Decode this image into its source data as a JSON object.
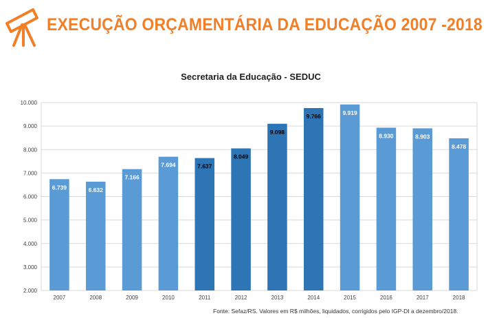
{
  "header": {
    "title": "EXECUÇÃO ORÇAMENTÁRIA DA EDUCAÇÃO 2007 -2018",
    "icon": "telescope-icon",
    "accent_color": "#f07f28"
  },
  "chart_data": {
    "type": "bar",
    "title": "Secretaria da Educação - SEDUC",
    "categories": [
      "2007",
      "2008",
      "2009",
      "2010",
      "2011",
      "2012",
      "2013",
      "2014",
      "2015",
      "2016",
      "2017",
      "2018"
    ],
    "values": [
      6739,
      6632,
      7166,
      7694,
      7637,
      8049,
      9098,
      9766,
      9919,
      8930,
      8903,
      8478
    ],
    "value_labels": [
      "6.739",
      "6.632",
      "7.166",
      "7.694",
      "7.637",
      "8.049",
      "9.098",
      "9.766",
      "9.919",
      "8.930",
      "8.903",
      "8.478"
    ],
    "highlighted": [
      false,
      false,
      false,
      false,
      true,
      true,
      true,
      true,
      false,
      false,
      false,
      false
    ],
    "ylim": [
      2000,
      10000
    ],
    "yticks": [
      2000,
      3000,
      4000,
      5000,
      6000,
      7000,
      8000,
      9000,
      10000
    ],
    "ytick_labels": [
      "2.000",
      "3.000",
      "4.000",
      "5.000",
      "6.000",
      "7.000",
      "8.000",
      "9.000",
      "10.000"
    ],
    "grid": true,
    "colors": {
      "light": "#5b9bd5",
      "dark": "#2e75b6",
      "label_light": "#ffffff",
      "label_dark": "#000000"
    },
    "xlabel": "",
    "ylabel": ""
  },
  "footer": {
    "source": "Fonte: Sefaz/RS. Valores em R$ milhões, liquidados, corrigidos pelo IGP-DI a dezembro/2018."
  }
}
